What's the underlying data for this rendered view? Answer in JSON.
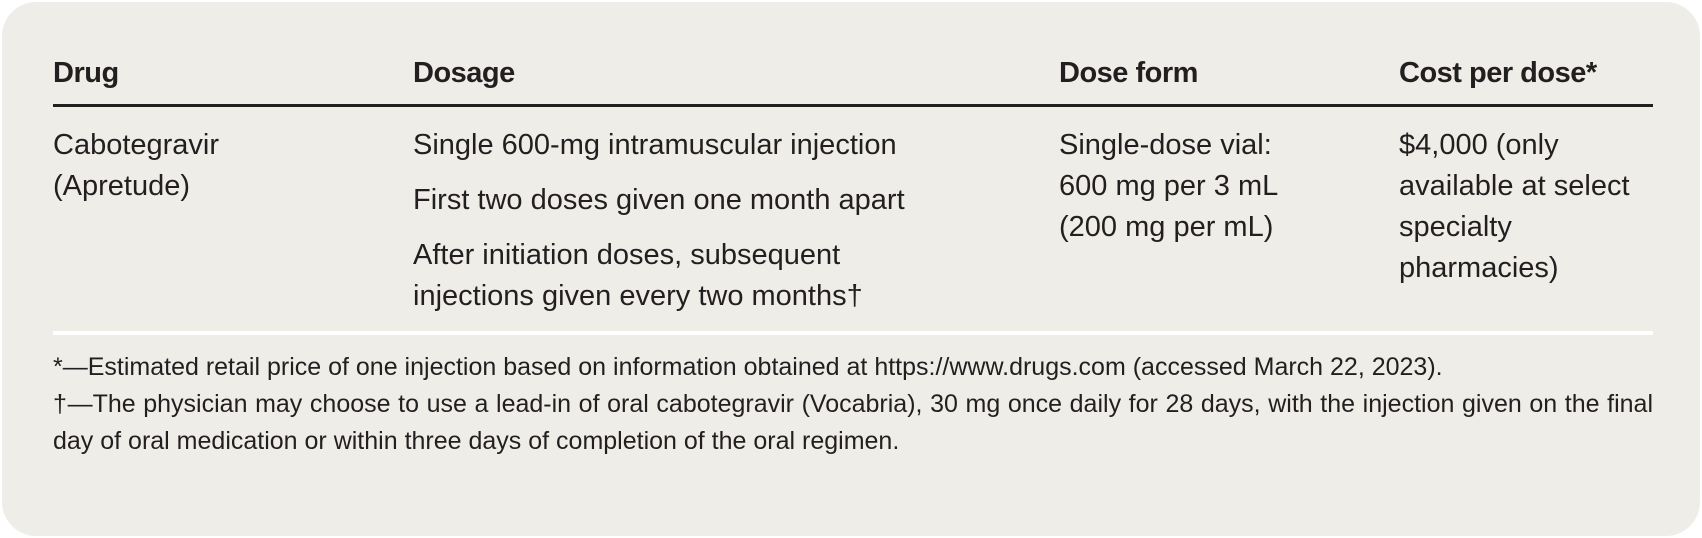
{
  "table": {
    "headers": [
      "Drug",
      "Dosage",
      "Dose form",
      "Cost per dose*"
    ],
    "rows": [
      {
        "drug": [
          "Cabotegravir",
          "(Apretude)"
        ],
        "dosage": [
          "Single 600-mg intramuscular injection",
          "First two doses given one month apart",
          "After initiation doses, subsequent injections given every two months†"
        ],
        "dose_form": [
          "Single-dose vial:",
          "600 mg per 3 mL",
          "(200 mg per mL)"
        ],
        "cost": "$4,000 (only available at select specialty pharmacies)"
      }
    ]
  },
  "footnotes": [
    "*—Estimated retail price of one injection based on information obtained at https://www.drugs.com (accessed March 22, 2023).",
    "†—The physician may choose to use a lead-in of oral cabotegravir (Vocabria), 30 mg once daily for 28 days, with the injection given on the final day of oral medication or within three days of completion of the oral regimen."
  ]
}
